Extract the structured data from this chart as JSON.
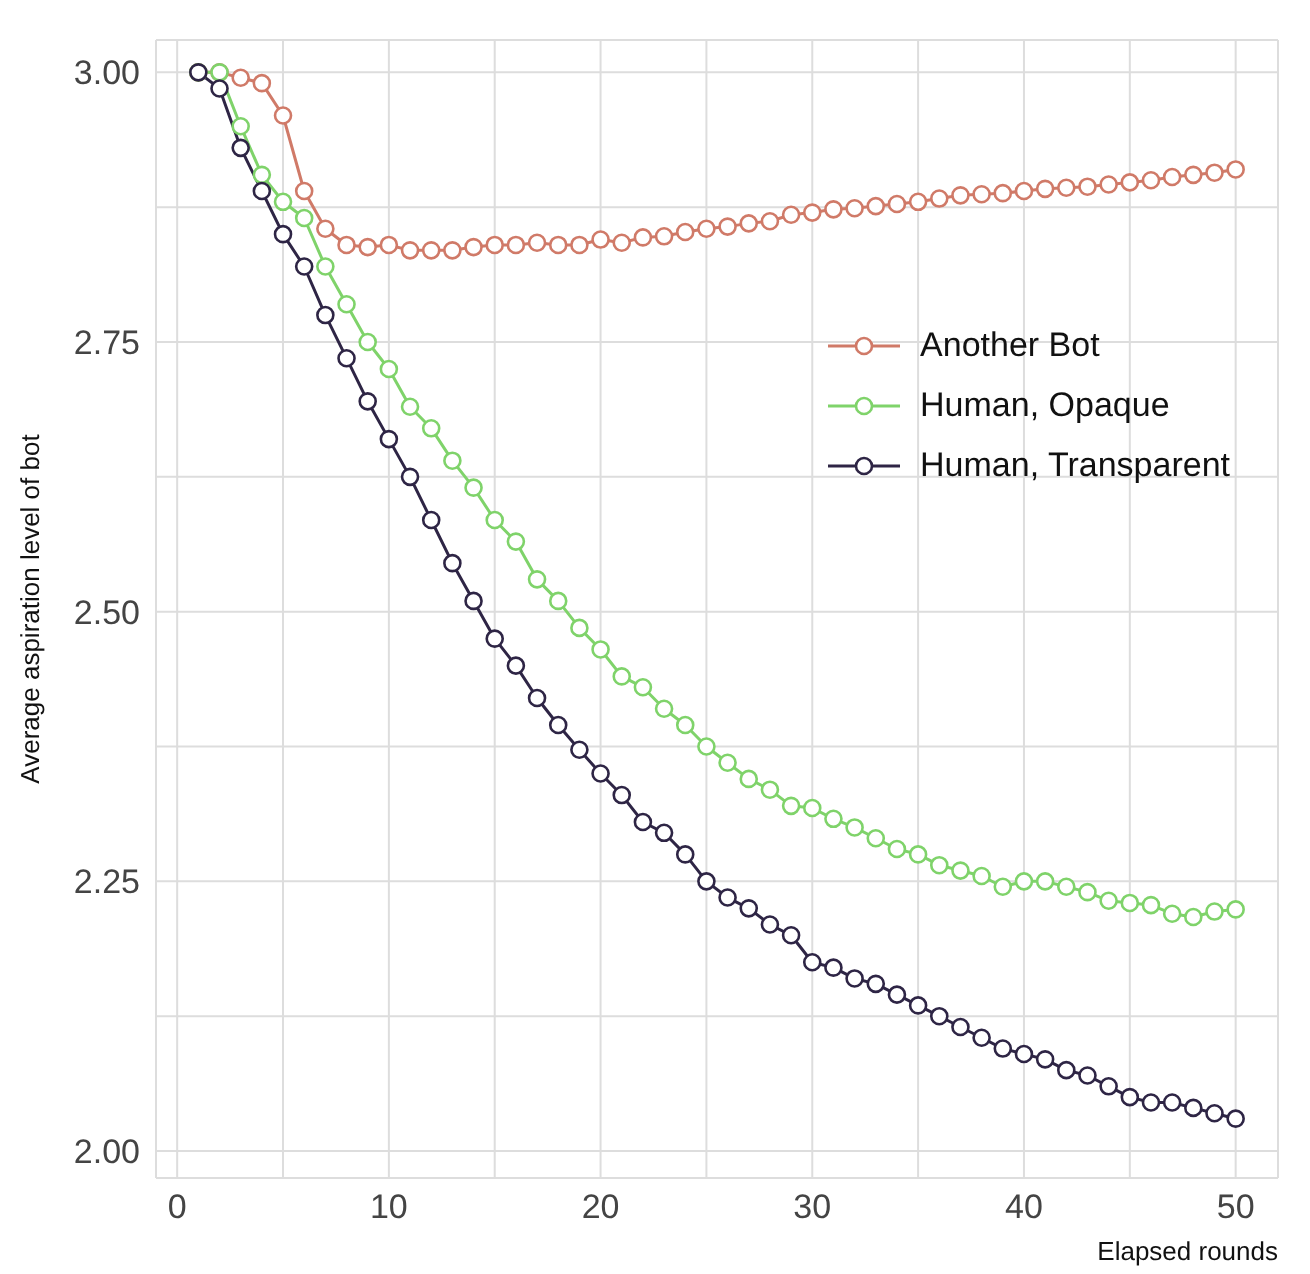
{
  "chart_data": {
    "type": "line",
    "xlabel": "Elapsed rounds",
    "ylabel": "Average aspiration level of bot",
    "x": [
      1,
      2,
      3,
      4,
      5,
      6,
      7,
      8,
      9,
      10,
      11,
      12,
      13,
      14,
      15,
      16,
      17,
      18,
      19,
      20,
      21,
      22,
      23,
      24,
      25,
      26,
      27,
      28,
      29,
      30,
      31,
      32,
      33,
      34,
      35,
      36,
      37,
      38,
      39,
      40,
      41,
      42,
      43,
      44,
      45,
      46,
      47,
      48,
      49,
      50
    ],
    "series": [
      {
        "name": "Another Bot",
        "color": "#d07a68",
        "values": [
          3.0,
          3.0,
          2.995,
          2.99,
          2.96,
          2.89,
          2.855,
          2.84,
          2.838,
          2.84,
          2.835,
          2.835,
          2.835,
          2.838,
          2.84,
          2.84,
          2.842,
          2.84,
          2.84,
          2.845,
          2.842,
          2.847,
          2.848,
          2.852,
          2.855,
          2.857,
          2.86,
          2.862,
          2.868,
          2.87,
          2.873,
          2.874,
          2.876,
          2.878,
          2.88,
          2.883,
          2.886,
          2.887,
          2.888,
          2.89,
          2.892,
          2.893,
          2.894,
          2.896,
          2.898,
          2.9,
          2.903,
          2.905,
          2.907,
          2.91
        ]
      },
      {
        "name": "Human, Opaque",
        "color": "#7fd36a",
        "values": [
          3.0,
          3.0,
          2.95,
          2.905,
          2.88,
          2.865,
          2.82,
          2.785,
          2.75,
          2.725,
          2.69,
          2.67,
          2.64,
          2.615,
          2.585,
          2.565,
          2.53,
          2.51,
          2.485,
          2.465,
          2.44,
          2.43,
          2.41,
          2.395,
          2.375,
          2.36,
          2.345,
          2.335,
          2.32,
          2.318,
          2.308,
          2.3,
          2.29,
          2.28,
          2.275,
          2.265,
          2.26,
          2.255,
          2.245,
          2.25,
          2.25,
          2.245,
          2.24,
          2.232,
          2.23,
          2.228,
          2.22,
          2.217,
          2.222,
          2.224
        ]
      },
      {
        "name": "Human, Transparent",
        "color": "#2e2545",
        "values": [
          3.0,
          2.985,
          2.93,
          2.89,
          2.85,
          2.82,
          2.775,
          2.735,
          2.695,
          2.66,
          2.625,
          2.585,
          2.545,
          2.51,
          2.475,
          2.45,
          2.42,
          2.395,
          2.372,
          2.35,
          2.33,
          2.305,
          2.295,
          2.275,
          2.25,
          2.235,
          2.225,
          2.21,
          2.2,
          2.175,
          2.17,
          2.16,
          2.155,
          2.145,
          2.135,
          2.125,
          2.115,
          2.105,
          2.095,
          2.09,
          2.085,
          2.075,
          2.07,
          2.06,
          2.05,
          2.045,
          2.045,
          2.04,
          2.035,
          2.03
        ]
      }
    ],
    "xlim": [
      -1,
      52
    ],
    "xticks": [
      0,
      {
        "value": 5,
        "label": null
      },
      10,
      {
        "value": 15,
        "label": null
      },
      20,
      {
        "value": 25,
        "label": null
      },
      30,
      {
        "value": 35,
        "label": null
      },
      40,
      {
        "value": 45,
        "label": null
      },
      50
    ],
    "ylim": [
      1.975,
      3.03
    ],
    "yticks": [
      {
        "value": 2,
        "label": "2.00"
      },
      {
        "value": 2.125,
        "label": null
      },
      {
        "value": 2.25,
        "label": "2.25"
      },
      {
        "value": 2.375,
        "label": null
      },
      {
        "value": 2.5,
        "label": "2.50"
      },
      {
        "value": 2.625,
        "label": null
      },
      {
        "value": 2.75,
        "label": "2.75"
      },
      {
        "value": 2.875,
        "label": null
      },
      {
        "value": 3,
        "label": "3.00"
      }
    ],
    "grid": true,
    "legend": "right",
    "marker": "circle",
    "line_style": "solid"
  }
}
